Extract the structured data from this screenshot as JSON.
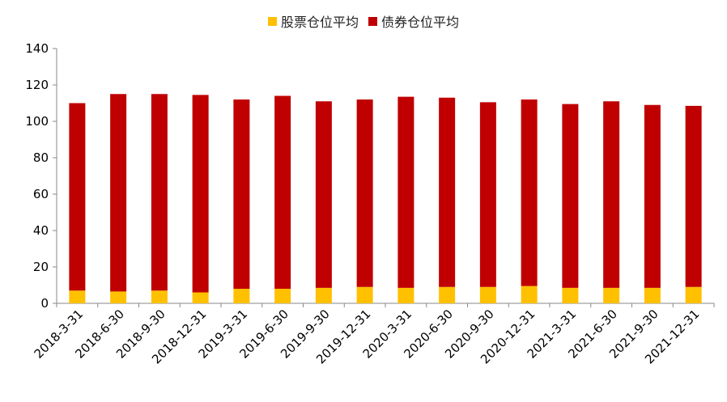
{
  "chart_data": {
    "type": "bar",
    "stacked": true,
    "categories": [
      "2018-3-31",
      "2018-6-30",
      "2018-9-30",
      "2018-12-31",
      "2019-3-31",
      "2019-6-30",
      "2019-9-30",
      "2019-12-31",
      "2020-3-31",
      "2020-6-30",
      "2020-9-30",
      "2020-12-31",
      "2021-3-31",
      "2021-6-30",
      "2021-9-30",
      "2021-12-31"
    ],
    "series": [
      {
        "name": "股票仓位平均",
        "color": "#FFC000",
        "values": [
          7.0,
          6.5,
          7.0,
          6.0,
          8.0,
          8.0,
          8.5,
          9.0,
          8.5,
          9.0,
          9.0,
          9.5,
          8.5,
          8.5,
          8.5,
          9.0
        ]
      },
      {
        "name": "债券仓位平均",
        "color": "#C00000",
        "values": [
          103.0,
          108.5,
          108.0,
          108.5,
          104.0,
          106.0,
          102.5,
          103.0,
          105.0,
          104.0,
          101.5,
          102.5,
          101.0,
          102.5,
          100.5,
          99.5
        ]
      }
    ],
    "ylim": [
      0,
      140
    ],
    "yticks": [
      0,
      20,
      40,
      60,
      80,
      100,
      120,
      140
    ],
    "grid": false,
    "legend_position": "top-center",
    "title": "",
    "xlabel": "",
    "ylabel": ""
  }
}
